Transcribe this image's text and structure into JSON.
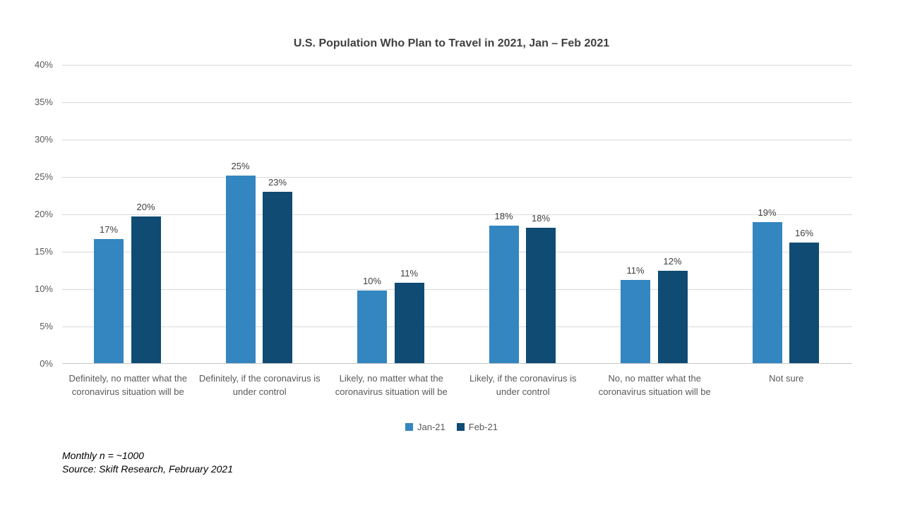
{
  "chart_data": {
    "type": "bar",
    "title": "U.S. Population Who Plan to Travel in 2021, Jan – Feb 2021",
    "categories": [
      "Definitely, no matter what the coronavirus situation will be",
      "Definitely, if the coronavirus is under control",
      "Likely, no matter what the coronavirus situation will be",
      "Likely, if the coronavirus is under control",
      "No, no matter what the coronavirus situation will be",
      "Not sure"
    ],
    "series": [
      {
        "name": "Jan-21",
        "color": "#3386C0",
        "values": [
          16.6,
          25.1,
          9.7,
          18.4,
          11.1,
          18.9
        ],
        "labels": [
          "17%",
          "25%",
          "10%",
          "18%",
          "11%",
          "19%"
        ]
      },
      {
        "name": "Feb-21",
        "color": "#0F4B73",
        "values": [
          19.6,
          22.9,
          10.8,
          18.1,
          12.4,
          16.1
        ],
        "labels": [
          "20%",
          "23%",
          "11%",
          "18%",
          "12%",
          "16%"
        ]
      }
    ],
    "xlabel": "",
    "ylabel": "",
    "ylim": [
      0,
      40
    ],
    "ytick_step": 5,
    "ytick_labels": [
      "0%",
      "5%",
      "10%",
      "15%",
      "20%",
      "25%",
      "30%",
      "35%",
      "40%"
    ],
    "grid": true,
    "legend_position": "bottom"
  },
  "footnotes": [
    "Monthly n = ~1000",
    "Source: Skift Research, February 2021"
  ],
  "colors": {
    "jan_bar": "#3386C0",
    "feb_bar": "#0F4B73",
    "gridline": "#D9D9D9",
    "axis_text": "#595959",
    "title_text": "#404040",
    "data_label_text": "#404040",
    "background": "#FFFFFF"
  }
}
